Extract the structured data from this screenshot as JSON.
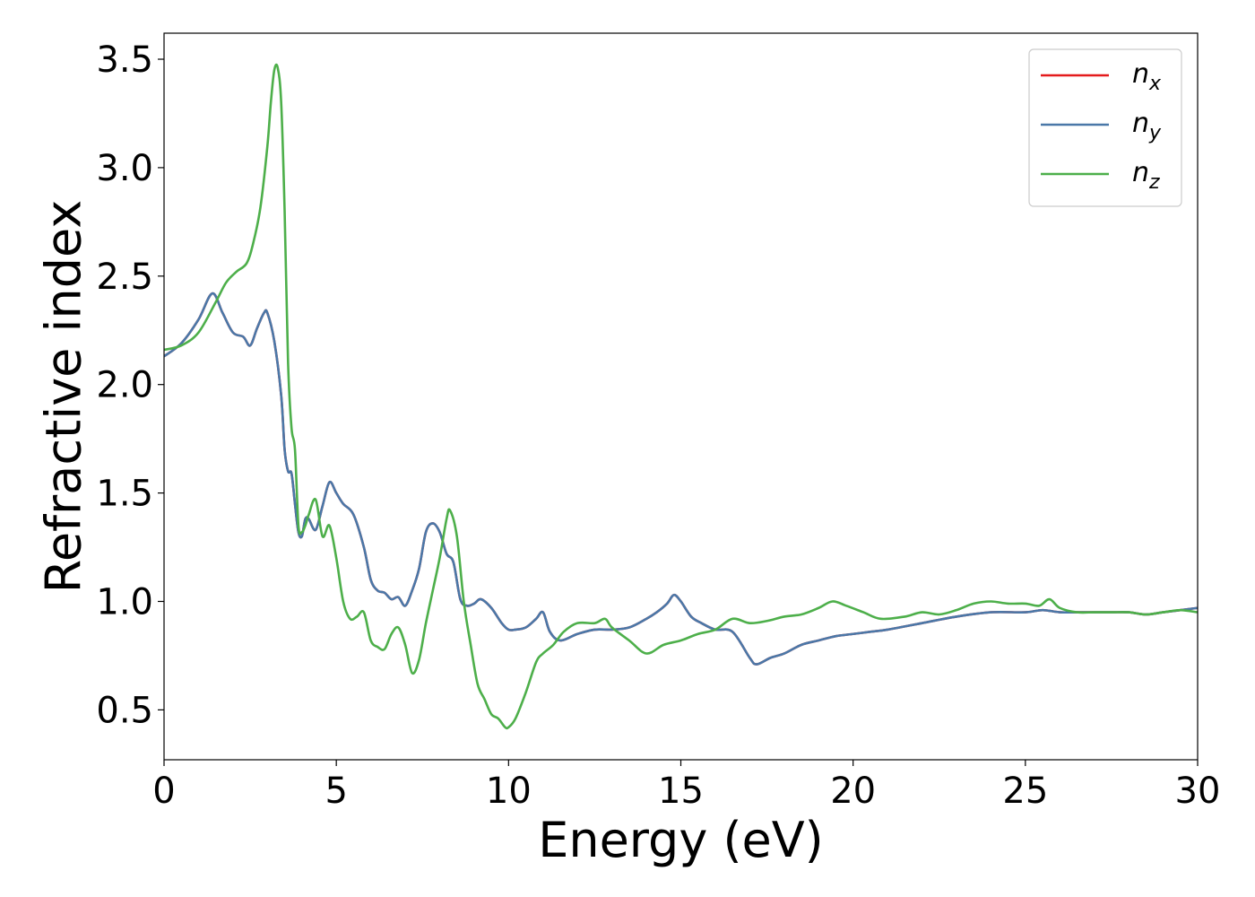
{
  "chart_data": {
    "type": "line",
    "title": "",
    "xlabel": "Energy (eV)",
    "ylabel": "Refractive index",
    "xlim": [
      0,
      30
    ],
    "ylim": [
      0.27,
      3.62
    ],
    "xticks": [
      "0",
      "5",
      "10",
      "15",
      "20",
      "25",
      "30"
    ],
    "xtick_values": [
      0,
      5,
      10,
      15,
      20,
      25,
      30
    ],
    "yticks": [
      "0.5",
      "1.0",
      "1.5",
      "2.0",
      "2.5",
      "3.0",
      "3.5"
    ],
    "ytick_values": [
      0.5,
      1.0,
      1.5,
      2.0,
      2.5,
      3.0,
      3.5
    ],
    "grid": false,
    "legend": {
      "position": "top-right"
    },
    "series": [
      {
        "name": "n",
        "subscript": "x",
        "color": "#e41a1c",
        "x": [
          0,
          0.5,
          1.0,
          1.4,
          1.7,
          2.0,
          2.3,
          2.5,
          2.7,
          2.9,
          3.0,
          3.2,
          3.4,
          3.5,
          3.6,
          3.7,
          3.8,
          3.9,
          4.0,
          4.1,
          4.2,
          4.4,
          4.6,
          4.8,
          5.0,
          5.2,
          5.5,
          5.8,
          6.0,
          6.2,
          6.4,
          6.6,
          6.8,
          7.0,
          7.2,
          7.4,
          7.6,
          7.8,
          8.0,
          8.2,
          8.4,
          8.6,
          8.8,
          9.0,
          9.2,
          9.5,
          9.8,
          10.0,
          10.2,
          10.5,
          10.8,
          11.0,
          11.2,
          11.5,
          12.0,
          12.5,
          13.0,
          13.5,
          14.0,
          14.3,
          14.6,
          14.8,
          15.0,
          15.3,
          15.6,
          16.0,
          16.5,
          17.0,
          17.2,
          17.6,
          18.0,
          18.5,
          19.0,
          19.5,
          20.0,
          20.5,
          21.0,
          22.0,
          23.0,
          24.0,
          25.0,
          25.5,
          26.0,
          26.5,
          27.0,
          27.5,
          28.0,
          28.5,
          29.0,
          29.5,
          30.0
        ],
        "y": [
          2.13,
          2.19,
          2.3,
          2.42,
          2.33,
          2.24,
          2.22,
          2.18,
          2.26,
          2.33,
          2.33,
          2.2,
          1.95,
          1.7,
          1.6,
          1.59,
          1.45,
          1.32,
          1.3,
          1.38,
          1.38,
          1.33,
          1.44,
          1.55,
          1.5,
          1.45,
          1.4,
          1.25,
          1.1,
          1.05,
          1.04,
          1.01,
          1.02,
          0.98,
          1.05,
          1.15,
          1.32,
          1.36,
          1.32,
          1.22,
          1.18,
          1.01,
          0.98,
          0.99,
          1.01,
          0.97,
          0.9,
          0.87,
          0.87,
          0.88,
          0.92,
          0.95,
          0.86,
          0.82,
          0.85,
          0.87,
          0.87,
          0.88,
          0.92,
          0.95,
          0.99,
          1.03,
          1.0,
          0.93,
          0.9,
          0.87,
          0.86,
          0.74,
          0.71,
          0.74,
          0.76,
          0.8,
          0.82,
          0.84,
          0.85,
          0.86,
          0.87,
          0.9,
          0.93,
          0.95,
          0.95,
          0.96,
          0.95,
          0.95,
          0.95,
          0.95,
          0.95,
          0.94,
          0.95,
          0.96,
          0.97
        ]
      },
      {
        "name": "n",
        "subscript": "y",
        "color": "#4a78a8",
        "x": [
          0,
          0.5,
          1.0,
          1.4,
          1.7,
          2.0,
          2.3,
          2.5,
          2.7,
          2.9,
          3.0,
          3.2,
          3.4,
          3.5,
          3.6,
          3.7,
          3.8,
          3.9,
          4.0,
          4.1,
          4.2,
          4.4,
          4.6,
          4.8,
          5.0,
          5.2,
          5.5,
          5.8,
          6.0,
          6.2,
          6.4,
          6.6,
          6.8,
          7.0,
          7.2,
          7.4,
          7.6,
          7.8,
          8.0,
          8.2,
          8.4,
          8.6,
          8.8,
          9.0,
          9.2,
          9.5,
          9.8,
          10.0,
          10.2,
          10.5,
          10.8,
          11.0,
          11.2,
          11.5,
          12.0,
          12.5,
          13.0,
          13.5,
          14.0,
          14.3,
          14.6,
          14.8,
          15.0,
          15.3,
          15.6,
          16.0,
          16.5,
          17.0,
          17.2,
          17.6,
          18.0,
          18.5,
          19.0,
          19.5,
          20.0,
          20.5,
          21.0,
          22.0,
          23.0,
          24.0,
          25.0,
          25.5,
          26.0,
          26.5,
          27.0,
          27.5,
          28.0,
          28.5,
          29.0,
          29.5,
          30.0
        ],
        "y": [
          2.13,
          2.19,
          2.3,
          2.42,
          2.33,
          2.24,
          2.22,
          2.18,
          2.26,
          2.33,
          2.33,
          2.2,
          1.95,
          1.7,
          1.6,
          1.59,
          1.45,
          1.32,
          1.3,
          1.38,
          1.38,
          1.33,
          1.44,
          1.55,
          1.5,
          1.45,
          1.4,
          1.25,
          1.1,
          1.05,
          1.04,
          1.01,
          1.02,
          0.98,
          1.05,
          1.15,
          1.32,
          1.36,
          1.32,
          1.22,
          1.18,
          1.01,
          0.98,
          0.99,
          1.01,
          0.97,
          0.9,
          0.87,
          0.87,
          0.88,
          0.92,
          0.95,
          0.86,
          0.82,
          0.85,
          0.87,
          0.87,
          0.88,
          0.92,
          0.95,
          0.99,
          1.03,
          1.0,
          0.93,
          0.9,
          0.87,
          0.86,
          0.74,
          0.71,
          0.74,
          0.76,
          0.8,
          0.82,
          0.84,
          0.85,
          0.86,
          0.87,
          0.9,
          0.93,
          0.95,
          0.95,
          0.96,
          0.95,
          0.95,
          0.95,
          0.95,
          0.95,
          0.94,
          0.95,
          0.96,
          0.97
        ]
      },
      {
        "name": "n",
        "subscript": "z",
        "color": "#4daf4a",
        "x": [
          0,
          0.5,
          1.0,
          1.5,
          1.8,
          2.1,
          2.4,
          2.6,
          2.8,
          3.0,
          3.1,
          3.2,
          3.3,
          3.4,
          3.5,
          3.6,
          3.7,
          3.8,
          3.9,
          4.0,
          4.1,
          4.2,
          4.4,
          4.6,
          4.8,
          5.0,
          5.2,
          5.4,
          5.6,
          5.8,
          6.0,
          6.2,
          6.4,
          6.6,
          6.8,
          7.0,
          7.2,
          7.4,
          7.6,
          7.8,
          8.0,
          8.2,
          8.3,
          8.5,
          8.7,
          8.9,
          9.1,
          9.3,
          9.5,
          9.7,
          9.9,
          10.0,
          10.2,
          10.5,
          10.8,
          11.0,
          11.3,
          11.6,
          12.0,
          12.5,
          12.8,
          13.0,
          13.5,
          14.0,
          14.5,
          15.0,
          15.5,
          16.0,
          16.5,
          17.0,
          17.5,
          18.0,
          18.5,
          19.0,
          19.4,
          19.8,
          20.3,
          20.8,
          21.5,
          22.0,
          22.5,
          23.0,
          23.5,
          24.0,
          24.5,
          25.0,
          25.4,
          25.7,
          26.0,
          26.5,
          27.0,
          27.5,
          28.0,
          28.5,
          29.0,
          29.5,
          30.0
        ],
        "y": [
          2.16,
          2.18,
          2.24,
          2.38,
          2.47,
          2.52,
          2.56,
          2.66,
          2.82,
          3.1,
          3.3,
          3.45,
          3.46,
          3.3,
          2.8,
          2.1,
          1.8,
          1.7,
          1.35,
          1.32,
          1.35,
          1.4,
          1.47,
          1.3,
          1.35,
          1.2,
          1.0,
          0.92,
          0.93,
          0.95,
          0.82,
          0.79,
          0.78,
          0.85,
          0.88,
          0.8,
          0.67,
          0.73,
          0.9,
          1.05,
          1.2,
          1.38,
          1.42,
          1.3,
          1.0,
          0.8,
          0.62,
          0.55,
          0.48,
          0.46,
          0.42,
          0.42,
          0.46,
          0.58,
          0.72,
          0.76,
          0.8,
          0.86,
          0.9,
          0.9,
          0.92,
          0.88,
          0.82,
          0.76,
          0.8,
          0.82,
          0.85,
          0.87,
          0.92,
          0.9,
          0.91,
          0.93,
          0.94,
          0.97,
          1.0,
          0.98,
          0.95,
          0.92,
          0.93,
          0.95,
          0.94,
          0.96,
          0.99,
          1.0,
          0.99,
          0.99,
          0.98,
          1.01,
          0.97,
          0.95,
          0.95,
          0.95,
          0.95,
          0.94,
          0.95,
          0.96,
          0.95
        ]
      }
    ]
  }
}
